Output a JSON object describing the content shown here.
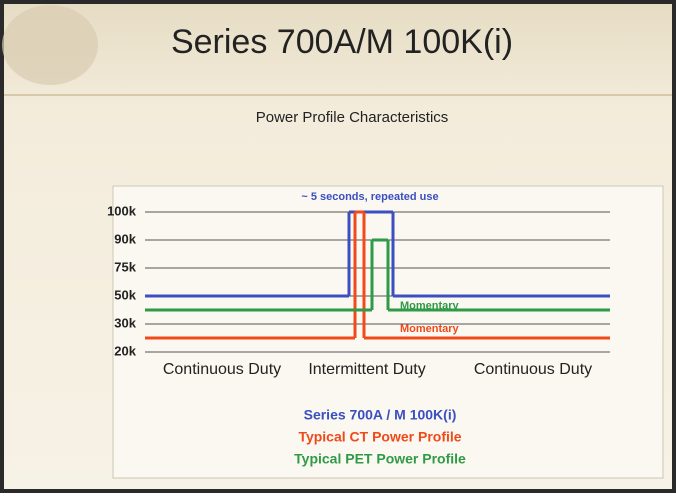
{
  "chart_data": {
    "type": "step",
    "title": "Series 700A/M 100K(i)",
    "subtitle": "Power Profile Characteristics",
    "categories": [
      "Continuous Duty",
      "Intermittent Duty",
      "Continuous Duty"
    ],
    "series": [
      {
        "name": "Series 700A / M  100K(i)",
        "color": "#3a4fc0",
        "values": [
          50000,
          100000,
          50000
        ]
      },
      {
        "name": "Typical CT Power Profile",
        "color": "#f04a1a",
        "values": [
          25000,
          100000,
          25000
        ]
      },
      {
        "name": "Typical PET Power Profile",
        "color": "#2f9a48",
        "values": [
          40000,
          90000,
          40000
        ]
      }
    ],
    "ylim": [
      20000,
      100000
    ],
    "yticks": [
      {
        "value": 20000,
        "label": "20k"
      },
      {
        "value": 30000,
        "label": "30k"
      },
      {
        "value": 50000,
        "label": "50k"
      },
      {
        "value": 75000,
        "label": "75k"
      },
      {
        "value": 90000,
        "label": "90k"
      },
      {
        "value": 100000,
        "label": "100k"
      }
    ],
    "grid": true,
    "annotations": [
      {
        "text": "~ 5 seconds, repeated use",
        "series": 0
      },
      {
        "text": "Momentary",
        "series": 2
      },
      {
        "text": "Momentary",
        "series": 1
      }
    ]
  }
}
